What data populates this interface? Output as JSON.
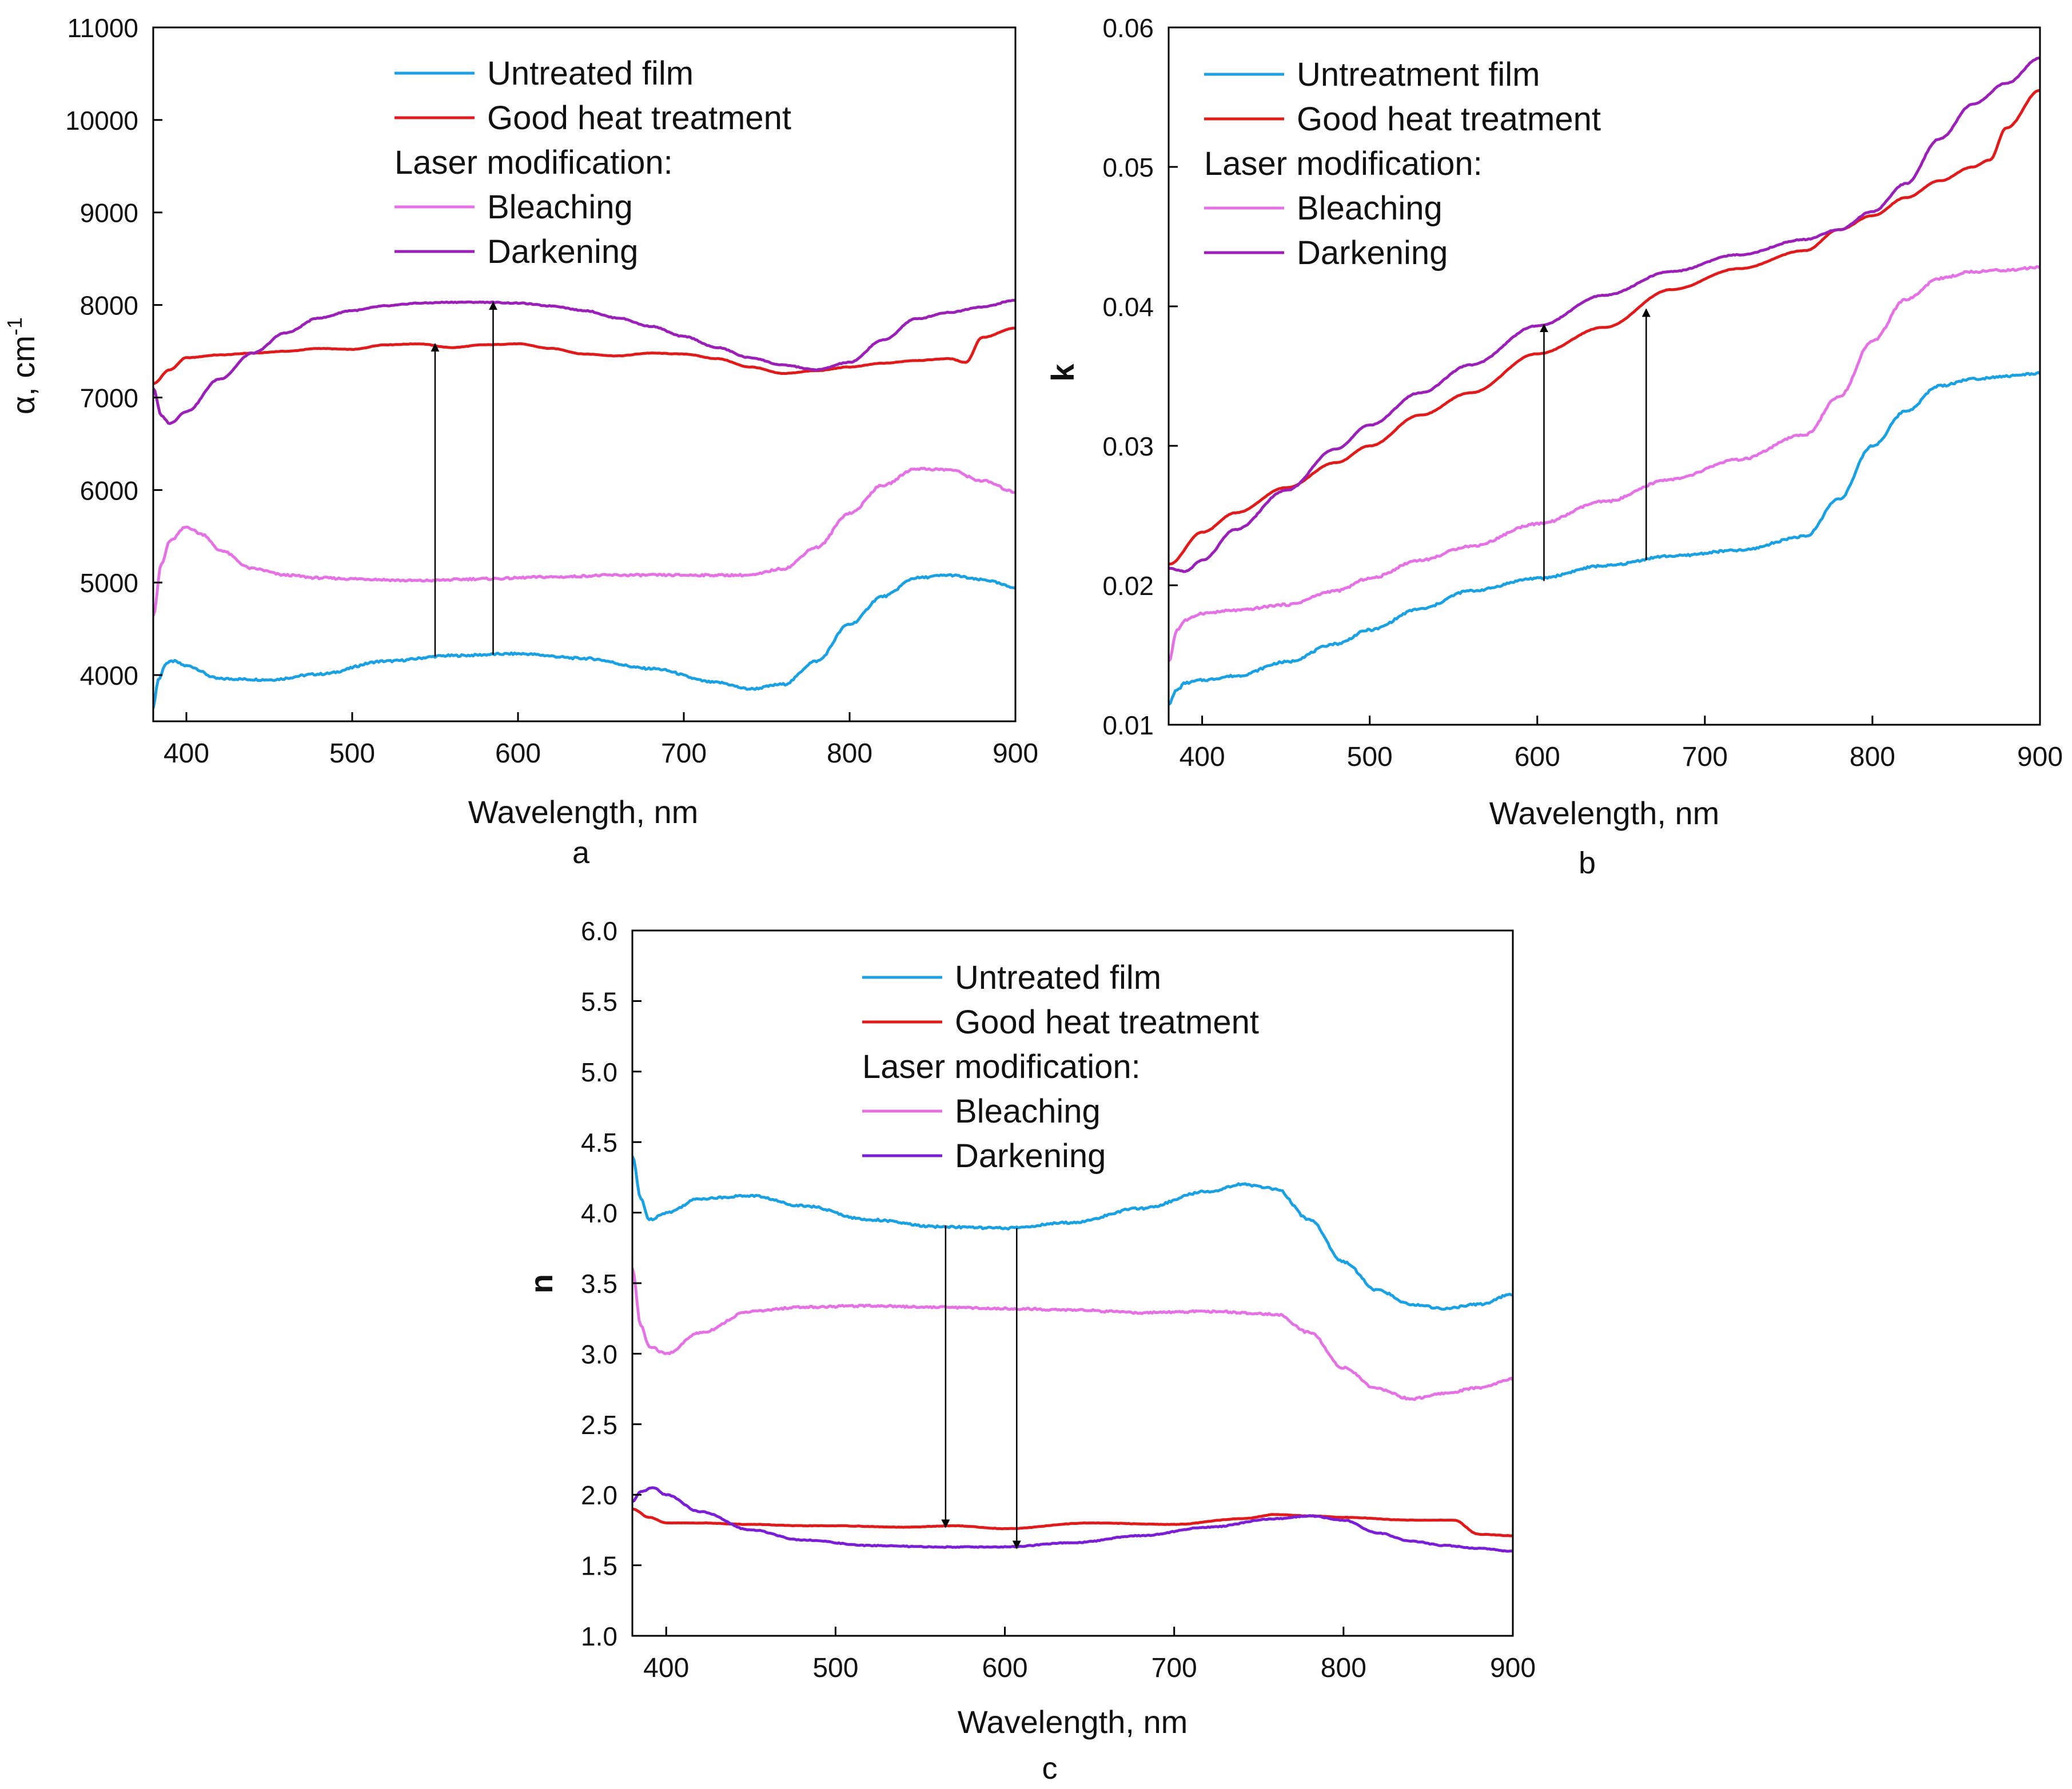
{
  "figure": {
    "background": "#ffffff"
  },
  "chart_data": [
    {
      "id": "a",
      "type": "line",
      "panel_label": "a",
      "xlabel": "Wavelength, nm",
      "ylabel_main": "α, cm",
      "ylabel_sup": "-1",
      "xlim": [
        380,
        900
      ],
      "ylim": [
        3500,
        11000
      ],
      "xticks": [
        400,
        500,
        600,
        700,
        800,
        900
      ],
      "yticks": [
        4000,
        5000,
        6000,
        7000,
        8000,
        9000,
        10000,
        11000
      ],
      "legend": {
        "position": "top-center",
        "header": "Laser modification:"
      },
      "series": [
        {
          "name": "Untreated film",
          "color": "#1BA1E2",
          "x": [
            380,
            383,
            388,
            392,
            400,
            420,
            450,
            480,
            520,
            560,
            600,
            640,
            680,
            720,
            740,
            760,
            780,
            800,
            820,
            840,
            860,
            880,
            900
          ],
          "y": [
            3650,
            3950,
            4130,
            4150,
            4100,
            3960,
            3950,
            4010,
            4150,
            4210,
            4230,
            4180,
            4070,
            3920,
            3850,
            3900,
            4150,
            4550,
            4850,
            5050,
            5080,
            5030,
            4950
          ]
        },
        {
          "name": "Good heat treatment",
          "color": "#E01B1B",
          "x": [
            380,
            390,
            400,
            420,
            440,
            460,
            480,
            500,
            520,
            540,
            560,
            580,
            600,
            620,
            640,
            660,
            680,
            700,
            720,
            740,
            760,
            780,
            800,
            820,
            840,
            860,
            870,
            880,
            900
          ],
          "y": [
            7150,
            7300,
            7430,
            7460,
            7480,
            7500,
            7530,
            7520,
            7570,
            7580,
            7540,
            7570,
            7580,
            7530,
            7470,
            7450,
            7480,
            7470,
            7420,
            7330,
            7260,
            7290,
            7330,
            7370,
            7400,
            7420,
            7380,
            7650,
            7750
          ]
        },
        {
          "name": "Bleaching",
          "color": "#E572E5",
          "x": [
            380,
            385,
            390,
            400,
            410,
            420,
            440,
            460,
            480,
            500,
            540,
            580,
            620,
            660,
            700,
            740,
            760,
            780,
            800,
            820,
            840,
            860,
            880,
            900
          ],
          "y": [
            4650,
            5200,
            5450,
            5600,
            5520,
            5350,
            5150,
            5080,
            5050,
            5040,
            5020,
            5040,
            5060,
            5080,
            5080,
            5080,
            5150,
            5380,
            5750,
            6050,
            6230,
            6220,
            6100,
            5980
          ]
        },
        {
          "name": "Darkening",
          "color": "#9A20B8",
          "x": [
            380,
            385,
            390,
            400,
            420,
            440,
            460,
            480,
            500,
            520,
            540,
            560,
            580,
            600,
            620,
            640,
            660,
            680,
            700,
            720,
            740,
            760,
            780,
            800,
            820,
            840,
            860,
            880,
            900
          ],
          "y": [
            7100,
            6800,
            6720,
            6850,
            7200,
            7480,
            7700,
            7860,
            7940,
            7990,
            8020,
            8030,
            8030,
            8020,
            7990,
            7940,
            7860,
            7770,
            7660,
            7540,
            7430,
            7350,
            7300,
            7380,
            7620,
            7850,
            7920,
            7980,
            8050
          ]
        }
      ],
      "arrows": [
        {
          "x": 550,
          "from": 4200,
          "to": 7580
        },
        {
          "x": 585,
          "from": 4220,
          "to": 8030
        }
      ]
    },
    {
      "id": "b",
      "type": "line",
      "panel_label": "b",
      "xlabel": "Wavelength, nm",
      "ylabel_main": "k",
      "ylabel_sup": "",
      "xlim": [
        380,
        900
      ],
      "ylim": [
        0.01,
        0.06
      ],
      "xticks": [
        400,
        500,
        600,
        700,
        800,
        900
      ],
      "yticks": [
        0.01,
        0.02,
        0.03,
        0.04,
        0.05,
        0.06
      ],
      "legend": {
        "position": "top-left",
        "header": "Laser modification:"
      },
      "series": [
        {
          "name": "Untreatment film",
          "color": "#1BA1E2",
          "x": [
            380,
            385,
            390,
            400,
            420,
            450,
            480,
            500,
            530,
            560,
            600,
            640,
            680,
            720,
            760,
            780,
            800,
            820,
            840,
            860,
            880,
            900
          ],
          "y": [
            0.0115,
            0.0125,
            0.013,
            0.0132,
            0.0135,
            0.0145,
            0.0158,
            0.0168,
            0.0183,
            0.0196,
            0.0205,
            0.0214,
            0.0221,
            0.0225,
            0.0235,
            0.0262,
            0.03,
            0.0325,
            0.0343,
            0.0348,
            0.035,
            0.0352
          ]
        },
        {
          "name": "Good heat treatment",
          "color": "#E01B1B",
          "x": [
            380,
            400,
            420,
            450,
            480,
            500,
            530,
            560,
            600,
            640,
            680,
            720,
            760,
            780,
            800,
            820,
            840,
            860,
            870,
            880,
            900
          ],
          "y": [
            0.0215,
            0.0238,
            0.0252,
            0.027,
            0.0288,
            0.03,
            0.0322,
            0.0338,
            0.0366,
            0.0385,
            0.0412,
            0.0427,
            0.044,
            0.0455,
            0.0465,
            0.0478,
            0.049,
            0.05,
            0.0505,
            0.0528,
            0.0555
          ]
        },
        {
          "name": "Bleaching",
          "color": "#E572E5",
          "x": [
            380,
            385,
            390,
            400,
            420,
            450,
            480,
            500,
            530,
            560,
            600,
            640,
            680,
            720,
            760,
            780,
            800,
            820,
            840,
            860,
            880,
            900
          ],
          "y": [
            0.0145,
            0.0168,
            0.0175,
            0.018,
            0.0182,
            0.0186,
            0.0196,
            0.0205,
            0.0218,
            0.0228,
            0.0244,
            0.026,
            0.0276,
            0.029,
            0.0308,
            0.0335,
            0.0375,
            0.0405,
            0.042,
            0.0425,
            0.0426,
            0.0428
          ]
        },
        {
          "name": "Darkening",
          "color": "#9A20B8",
          "x": [
            380,
            390,
            400,
            420,
            450,
            480,
            500,
            530,
            560,
            600,
            640,
            680,
            720,
            760,
            780,
            800,
            820,
            840,
            860,
            880,
            900
          ],
          "y": [
            0.0212,
            0.021,
            0.0218,
            0.024,
            0.0268,
            0.0298,
            0.0315,
            0.0338,
            0.0358,
            0.0386,
            0.0408,
            0.0425,
            0.0437,
            0.0448,
            0.0455,
            0.0468,
            0.0488,
            0.052,
            0.0545,
            0.056,
            0.0578
          ]
        }
      ],
      "arrows": [
        {
          "x": 604,
          "from": 0.0203,
          "to": 0.0387
        },
        {
          "x": 665,
          "from": 0.0218,
          "to": 0.0398
        }
      ]
    },
    {
      "id": "c",
      "type": "line",
      "panel_label": "c",
      "xlabel": "Wavelength, nm",
      "ylabel_main": "n",
      "ylabel_sup": "",
      "xlim": [
        380,
        900
      ],
      "ylim": [
        1.0,
        6.0
      ],
      "xticks": [
        400,
        500,
        600,
        700,
        800,
        900
      ],
      "yticks": [
        1.0,
        1.5,
        2.0,
        2.5,
        3.0,
        3.5,
        4.0,
        4.5,
        5.0,
        5.5,
        6.0
      ],
      "legend": {
        "position": "top-center",
        "header": "Laser modification:"
      },
      "series": [
        {
          "name": "Untreated film",
          "color": "#1BA1E2",
          "x": [
            380,
            385,
            390,
            400,
            420,
            450,
            480,
            520,
            560,
            600,
            640,
            680,
            720,
            740,
            760,
            780,
            800,
            820,
            840,
            860,
            880,
            900
          ],
          "y": [
            4.4,
            4.1,
            3.95,
            4.0,
            4.1,
            4.12,
            4.05,
            3.95,
            3.9,
            3.89,
            3.93,
            4.03,
            4.15,
            4.2,
            4.17,
            3.95,
            3.65,
            3.45,
            3.35,
            3.32,
            3.35,
            3.42
          ]
        },
        {
          "name": "Good heat treatment",
          "color": "#E01B1B",
          "x": [
            380,
            390,
            400,
            420,
            450,
            480,
            500,
            540,
            570,
            600,
            650,
            700,
            740,
            760,
            780,
            800,
            840,
            865,
            880,
            900
          ],
          "y": [
            1.9,
            1.84,
            1.8,
            1.8,
            1.79,
            1.78,
            1.78,
            1.77,
            1.78,
            1.76,
            1.8,
            1.79,
            1.83,
            1.86,
            1.85,
            1.84,
            1.82,
            1.82,
            1.72,
            1.71
          ]
        },
        {
          "name": "Bleaching",
          "color": "#E572E5",
          "x": [
            380,
            385,
            390,
            400,
            420,
            450,
            480,
            520,
            560,
            600,
            640,
            680,
            720,
            760,
            780,
            800,
            820,
            840,
            860,
            880,
            900
          ],
          "y": [
            3.6,
            3.2,
            3.05,
            3.0,
            3.15,
            3.3,
            3.33,
            3.34,
            3.33,
            3.32,
            3.31,
            3.29,
            3.3,
            3.28,
            3.15,
            2.9,
            2.75,
            2.68,
            2.72,
            2.76,
            2.82
          ]
        },
        {
          "name": "Darkening",
          "color": "#7A1FD6",
          "x": [
            380,
            385,
            392,
            400,
            420,
            450,
            480,
            520,
            560,
            600,
            640,
            680,
            720,
            760,
            780,
            800,
            820,
            840,
            860,
            880,
            900
          ],
          "y": [
            1.95,
            2.02,
            2.05,
            2.0,
            1.88,
            1.75,
            1.68,
            1.64,
            1.63,
            1.63,
            1.66,
            1.71,
            1.77,
            1.83,
            1.85,
            1.82,
            1.73,
            1.67,
            1.64,
            1.62,
            1.6
          ]
        }
      ],
      "arrows": [
        {
          "x": 565,
          "from": 3.91,
          "to": 1.77
        },
        {
          "x": 607,
          "from": 3.89,
          "to": 1.62
        }
      ]
    }
  ]
}
